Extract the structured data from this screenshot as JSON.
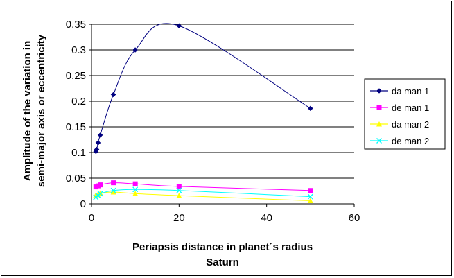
{
  "chart_data": {
    "type": "scatter",
    "xlabel": "Periapsis distance in planet´s radius",
    "xlabel_line2": "Saturn",
    "ylabel": "Amplitude of the variation in",
    "ylabel_line2": "semi-major axis or eccentricity",
    "xlim": [
      0,
      60
    ],
    "ylim": [
      0,
      0.35
    ],
    "x_ticks": [
      0,
      20,
      40,
      60
    ],
    "y_ticks": [
      0,
      0.05,
      0.1,
      0.15,
      0.2,
      0.25,
      0.3,
      0.35
    ],
    "x_tick_labels": [
      "0",
      "20",
      "40",
      "60"
    ],
    "y_tick_labels": [
      "0",
      "0.05",
      "0.1",
      "0.15",
      "0.2",
      "0.25",
      "0.3",
      "0.35"
    ],
    "grid": "horizontal",
    "legend_position": "right",
    "smooth_lines": true,
    "series": [
      {
        "name": "da man 1",
        "color": "#000080",
        "marker": "diamond",
        "x": [
          1,
          1.2,
          1.5,
          2,
          5,
          10,
          20,
          50
        ],
        "y": [
          0.102,
          0.106,
          0.119,
          0.134,
          0.213,
          0.3,
          0.347,
          0.186
        ]
      },
      {
        "name": "de man 1",
        "color": "#ff00ff",
        "marker": "square",
        "x": [
          1,
          1.5,
          2,
          5,
          10,
          20,
          50
        ],
        "y": [
          0.033,
          0.035,
          0.037,
          0.041,
          0.039,
          0.034,
          0.026
        ]
      },
      {
        "name": "da man 2",
        "color": "#ffff00",
        "marker": "triangle",
        "x": [
          1,
          1.5,
          2,
          5,
          10,
          20,
          50
        ],
        "y": [
          0.017,
          0.019,
          0.021,
          0.023,
          0.02,
          0.016,
          0.006
        ]
      },
      {
        "name": "de man 2",
        "color": "#00ffff",
        "marker": "x",
        "x": [
          1,
          1.5,
          2,
          5,
          10,
          20,
          50
        ],
        "y": [
          0.013,
          0.016,
          0.02,
          0.026,
          0.028,
          0.026,
          0.014
        ]
      }
    ]
  }
}
